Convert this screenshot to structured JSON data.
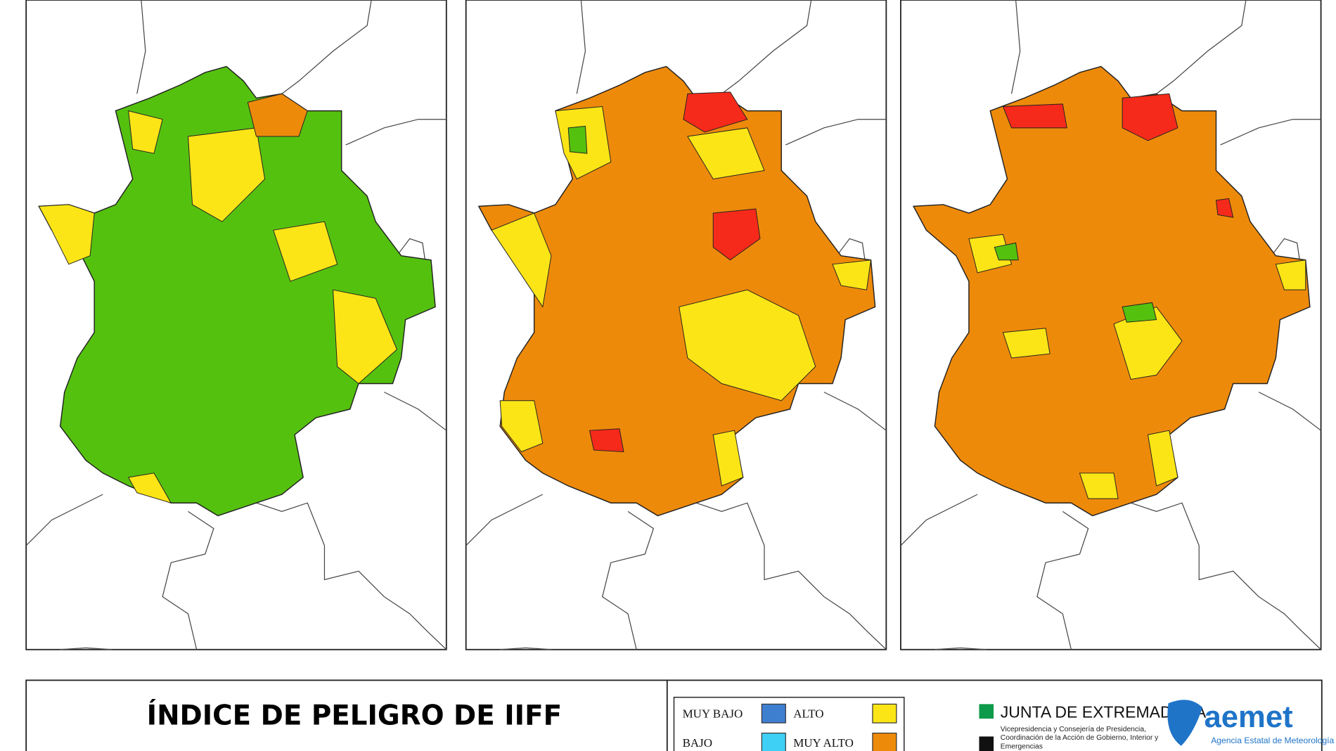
{
  "header": {
    "title": "ÍNDICE DE PELIGRO DE IIFF"
  },
  "legend": [
    {
      "label": "MUY BAJO",
      "color": "#3f7fd0"
    },
    {
      "label": "BAJO",
      "color": "#3fd0f5"
    },
    {
      "label": "ALTO",
      "color": "#fbe516"
    },
    {
      "label": "MUY ALTO",
      "color": "#ee8a0a"
    }
  ],
  "logos": {
    "junta": "JUNTA DE EXTREMADURA",
    "junta_sub": "Vicepresidencia y Consejería de Presidencia, Coordinación de la Acción de Gobierno, Interior y Emergencias",
    "aemet": "aemet",
    "aemet_sub": "Agencia Estatal de Meteorología"
  }
}
